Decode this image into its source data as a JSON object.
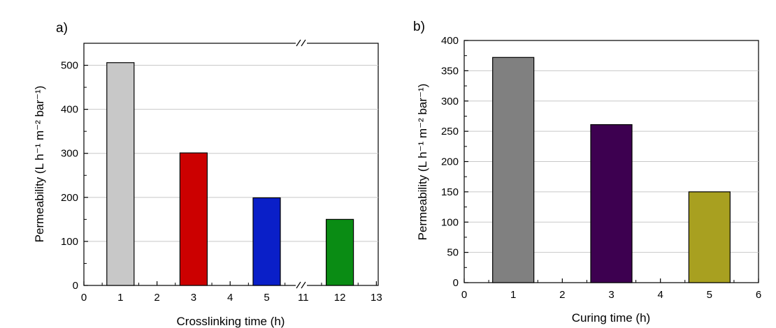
{
  "chart_data": [
    {
      "panel_label": "a)",
      "type": "bar",
      "categories": [
        "1",
        "3",
        "5",
        "12"
      ],
      "values": [
        506,
        301,
        199,
        150
      ],
      "colors": [
        "#c8c8c8",
        "#cc0000",
        "#0a1fc8",
        "#0a8c14"
      ],
      "xlabel": "Crosslinking time (h)",
      "ylabel": "Permeability (L h⁻¹ m⁻² bar⁻¹)",
      "ylim": [
        0,
        550
      ],
      "yticks": [
        "0",
        "100",
        "200",
        "300",
        "400",
        "500"
      ],
      "xticks": [
        "0",
        "1",
        "2",
        "3",
        "4",
        "5",
        "11",
        "12",
        "13"
      ],
      "axis_break": "between 5 and 11",
      "grid": "horizontal"
    },
    {
      "panel_label": "b)",
      "type": "bar",
      "categories": [
        "1",
        "3",
        "5"
      ],
      "values": [
        372,
        261,
        150
      ],
      "colors": [
        "#808080",
        "#3d0050",
        "#a8a020"
      ],
      "xlabel": "Curing time (h)",
      "ylabel": "Permeability (L h⁻¹ m⁻² bar⁻¹)",
      "ylim": [
        0,
        400
      ],
      "yticks": [
        "0",
        "50",
        "100",
        "150",
        "200",
        "250",
        "300",
        "350",
        "400"
      ],
      "xticks": [
        "0",
        "1",
        "2",
        "3",
        "4",
        "5",
        "6"
      ],
      "grid": "horizontal"
    }
  ]
}
